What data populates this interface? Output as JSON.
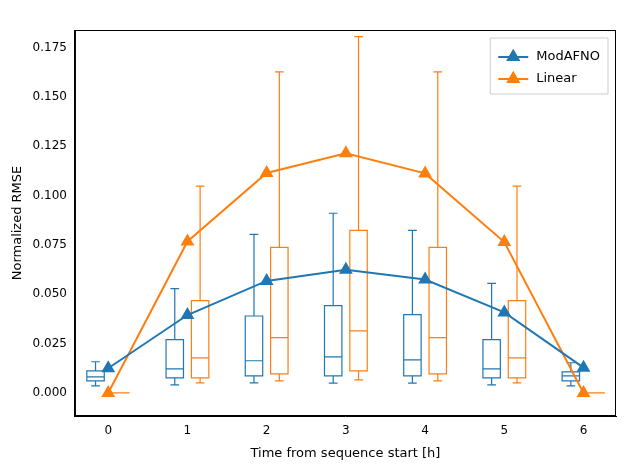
{
  "chart_data": {
    "type": "line",
    "x_label": "Time from sequence start [h]",
    "y_label": "Normalized RMSE",
    "x": [
      0,
      1,
      2,
      3,
      4,
      5,
      6
    ],
    "xlim": [
      -0.42,
      6.41
    ],
    "xticks": [
      0,
      1,
      2,
      3,
      4,
      5,
      6
    ],
    "ylim": [
      -0.0117,
      0.184
    ],
    "yticks": [
      {
        "value": 0,
        "label": "0.000"
      },
      {
        "value": 0.025,
        "label": "0.025"
      },
      {
        "value": 0.05,
        "label": "0.050"
      },
      {
        "value": 0.075,
        "label": "0.075"
      },
      {
        "value": 0.1,
        "label": "0.100"
      },
      {
        "value": 0.125,
        "label": "0.125"
      },
      {
        "value": 0.15,
        "label": "0.150"
      },
      {
        "value": 0.175,
        "label": "0.175"
      }
    ],
    "grid": false,
    "legend": "upper right",
    "series": [
      {
        "name": "ModAFNO",
        "color": "#1f77b4",
        "marker": "triangle",
        "line_style": "solid",
        "values": [
          0.0125,
          0.0395,
          0.0568,
          0.0625,
          0.0575,
          0.0408,
          0.0128
        ],
        "box": {
          "low": [
            0.0036,
            0.0041,
            0.0051,
            0.005,
            0.005,
            0.0041,
            0.0036
          ],
          "q1": [
            0.0061,
            0.0076,
            0.0086,
            0.0086,
            0.0086,
            0.0076,
            0.0061
          ],
          "median": [
            0.0081,
            0.0122,
            0.0163,
            0.0183,
            0.0168,
            0.0122,
            0.0086
          ],
          "q3": [
            0.0112,
            0.027,
            0.039,
            0.0443,
            0.0397,
            0.027,
            0.0107
          ],
          "high": [
            0.0158,
            0.0529,
            0.0804,
            0.0911,
            0.0824,
            0.0555,
            0.0153
          ]
        }
      },
      {
        "name": "Linear",
        "color": "#ff7f0e",
        "marker": "triangle",
        "line_style": "solid",
        "values": [
          0,
          0.0768,
          0.1115,
          0.1215,
          0.1113,
          0.0765,
          0
        ],
        "box": {
          "low": [
            0,
            0.0051,
            0.0061,
            0.0066,
            0.0061,
            0.0051,
            0
          ],
          "q1": [
            0,
            0.0076,
            0.0097,
            0.0112,
            0.0097,
            0.0076,
            0
          ],
          "median": [
            0,
            0.0178,
            0.028,
            0.0315,
            0.028,
            0.0178,
            0
          ],
          "q3": [
            0,
            0.0468,
            0.0738,
            0.0824,
            0.0738,
            0.0468,
            0
          ],
          "high": [
            0,
            0.1048,
            0.1628,
            0.1806,
            0.1628,
            0.1048,
            0
          ]
        }
      }
    ]
  }
}
